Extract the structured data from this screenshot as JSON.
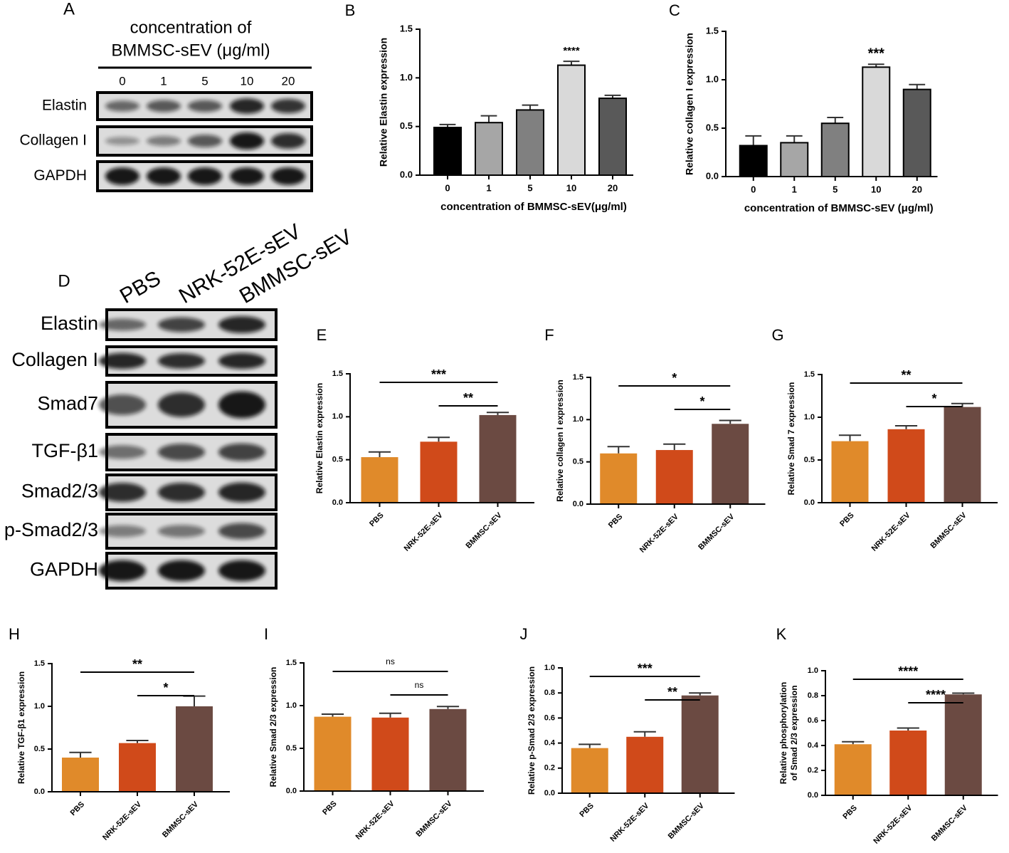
{
  "blot_a": {
    "panel": "A",
    "title": [
      "concentration of",
      "BMMSC-sEV (μg/ml)"
    ],
    "lanes": [
      "0",
      "1",
      "5",
      "10",
      "20"
    ],
    "rows": [
      "Elastin",
      "Collagen I",
      "GAPDH"
    ]
  },
  "blot_d": {
    "panel": "D",
    "lanes": [
      "PBS",
      "NRK-52E-sEV",
      "BMMSC-sEV"
    ],
    "rows": [
      "Elastin",
      "Collagen I",
      "Smad7",
      "TGF-β1",
      "Smad2/3",
      "p-Smad2/3",
      "GAPDH"
    ]
  },
  "chart_data": [
    {
      "type": "bar",
      "panel": "B",
      "ylabel": "Relative Elastin expression",
      "xlabel": "concentration of BMMSC-sEV(μg/ml)",
      "categories": [
        "0",
        "1",
        "5",
        "10",
        "20"
      ],
      "values": [
        0.49,
        0.54,
        0.67,
        1.13,
        0.79
      ],
      "errors": [
        0.03,
        0.07,
        0.05,
        0.04,
        0.03
      ],
      "colors": [
        "#000000",
        "#a6a6a6",
        "#808080",
        "#d9d9d9",
        "#595959"
      ],
      "ylim": [
        0,
        1.5
      ],
      "yticks": [
        {
          "value": 0,
          "label": "0.0"
        },
        {
          "value": 0.5,
          "label": "0.5"
        },
        {
          "value": 1,
          "label": "1.0"
        },
        {
          "value": 1.5,
          "label": "1.5"
        }
      ],
      "annotations": [
        {
          "bar": 3,
          "label": "****"
        }
      ]
    },
    {
      "type": "bar",
      "panel": "C",
      "ylabel": "Relative collagen I expression",
      "xlabel": "concentration of BMMSC-sEV (μg/ml)",
      "categories": [
        "0",
        "1",
        "5",
        "10",
        "20"
      ],
      "values": [
        0.32,
        0.35,
        0.55,
        1.13,
        0.9
      ],
      "errors": [
        0.1,
        0.07,
        0.06,
        0.03,
        0.05
      ],
      "colors": [
        "#000000",
        "#a6a6a6",
        "#808080",
        "#d9d9d9",
        "#595959"
      ],
      "ylim": [
        0,
        1.5
      ],
      "yticks": [
        {
          "value": 0,
          "label": "0.0"
        },
        {
          "value": 0.5,
          "label": "0.5"
        },
        {
          "value": 1,
          "label": "1.0"
        },
        {
          "value": 1.5,
          "label": "1.5"
        }
      ],
      "annotations": [
        {
          "bar": 3,
          "label": "***"
        }
      ]
    },
    {
      "type": "bar",
      "panel": "E",
      "ylabel": "Relative Elastin expression",
      "categories": [
        "PBS",
        "NRK-52E-sEV",
        "BMMSC-sEV"
      ],
      "values": [
        0.53,
        0.71,
        1.02
      ],
      "errors": [
        0.06,
        0.05,
        0.03
      ],
      "colors": [
        "#e08a2a",
        "#d04a1a",
        "#6b4a42"
      ],
      "ylim": [
        0,
        1.5
      ],
      "yticks": [
        {
          "value": 0,
          "label": "0.0"
        },
        {
          "value": 0.5,
          "label": "0.5"
        },
        {
          "value": 1,
          "label": "1.0"
        },
        {
          "value": 1.5,
          "label": "1.5"
        }
      ],
      "comparisons": [
        {
          "from": 0,
          "to": 2,
          "label": "***"
        },
        {
          "from": 1,
          "to": 2,
          "label": "**"
        }
      ]
    },
    {
      "type": "bar",
      "panel": "F",
      "ylabel": "Relative collagen I expression",
      "categories": [
        "PBS",
        "NRK-52E-sEV",
        "BMMSC-sEV"
      ],
      "values": [
        0.6,
        0.64,
        0.95
      ],
      "errors": [
        0.08,
        0.07,
        0.04
      ],
      "colors": [
        "#e08a2a",
        "#d04a1a",
        "#6b4a42"
      ],
      "ylim": [
        0,
        1.5
      ],
      "yticks": [
        {
          "value": 0,
          "label": "0.0"
        },
        {
          "value": 0.5,
          "label": "0.5"
        },
        {
          "value": 1,
          "label": "1.0"
        },
        {
          "value": 1.5,
          "label": "1.5"
        }
      ],
      "comparisons": [
        {
          "from": 0,
          "to": 2,
          "label": "*"
        },
        {
          "from": 1,
          "to": 2,
          "label": "*"
        }
      ]
    },
    {
      "type": "bar",
      "panel": "G",
      "ylabel": "Relative Smad 7 expression",
      "categories": [
        "PBS",
        "NRK-52E-sEV",
        "BMMSC-sEV"
      ],
      "values": [
        0.72,
        0.86,
        1.12
      ],
      "errors": [
        0.07,
        0.04,
        0.04
      ],
      "colors": [
        "#e08a2a",
        "#d04a1a",
        "#6b4a42"
      ],
      "ylim": [
        0,
        1.5
      ],
      "yticks": [
        {
          "value": 0,
          "label": "0.0"
        },
        {
          "value": 0.5,
          "label": "0.5"
        },
        {
          "value": 1,
          "label": "1.0"
        },
        {
          "value": 1.5,
          "label": "1.5"
        }
      ],
      "comparisons": [
        {
          "from": 0,
          "to": 2,
          "label": "**"
        },
        {
          "from": 1,
          "to": 2,
          "label": "*"
        }
      ]
    },
    {
      "type": "bar",
      "panel": "H",
      "ylabel": "Relative TGF-β1 expression",
      "categories": [
        "PBS",
        "NRK-52E-sEV",
        "BMMSC-sEV"
      ],
      "values": [
        0.4,
        0.57,
        1.0
      ],
      "errors": [
        0.06,
        0.03,
        0.12
      ],
      "colors": [
        "#e08a2a",
        "#d04a1a",
        "#6b4a42"
      ],
      "ylim": [
        0,
        1.5
      ],
      "yticks": [
        {
          "value": 0,
          "label": "0.0"
        },
        {
          "value": 0.5,
          "label": "0.5"
        },
        {
          "value": 1,
          "label": "1.0"
        },
        {
          "value": 1.5,
          "label": "1.5"
        }
      ],
      "comparisons": [
        {
          "from": 0,
          "to": 2,
          "label": "**"
        },
        {
          "from": 1,
          "to": 2,
          "label": "*"
        }
      ]
    },
    {
      "type": "bar",
      "panel": "I",
      "ylabel": "Relative Smad 2/3 expression",
      "categories": [
        "PBS",
        "NRK-52E-sEV",
        "BMMSC-sEV"
      ],
      "values": [
        0.87,
        0.86,
        0.96
      ],
      "errors": [
        0.03,
        0.05,
        0.03
      ],
      "colors": [
        "#e08a2a",
        "#d04a1a",
        "#6b4a42"
      ],
      "ylim": [
        0,
        1.5
      ],
      "yticks": [
        {
          "value": 0,
          "label": "0.0"
        },
        {
          "value": 0.5,
          "label": "0.5"
        },
        {
          "value": 1,
          "label": "1.0"
        },
        {
          "value": 1.5,
          "label": "1.5"
        }
      ],
      "comparisons": [
        {
          "from": 0,
          "to": 2,
          "label": "ns"
        },
        {
          "from": 1,
          "to": 2,
          "label": "ns"
        }
      ]
    },
    {
      "type": "bar",
      "panel": "J",
      "ylabel": "Relative p-Smad 2/3 expression",
      "categories": [
        "PBS",
        "NRK-52E-sEV",
        "BMMSC-sEV"
      ],
      "values": [
        0.36,
        0.45,
        0.78
      ],
      "errors": [
        0.03,
        0.04,
        0.02
      ],
      "colors": [
        "#e08a2a",
        "#d04a1a",
        "#6b4a42"
      ],
      "ylim": [
        0,
        1
      ],
      "yticks": [
        {
          "value": 0,
          "label": "0.0"
        },
        {
          "value": 0.2,
          "label": "0.2"
        },
        {
          "value": 0.4,
          "label": "0.4"
        },
        {
          "value": 0.6,
          "label": "0.6"
        },
        {
          "value": 0.8,
          "label": "0.8"
        },
        {
          "value": 1,
          "label": "1.0"
        }
      ],
      "comparisons": [
        {
          "from": 0,
          "to": 2,
          "label": "***"
        },
        {
          "from": 1,
          "to": 2,
          "label": "**"
        }
      ]
    },
    {
      "type": "bar",
      "panel": "K",
      "ylabel": [
        "Relative phosphorylation",
        "of Smad 2/3 expression"
      ],
      "categories": [
        "PBS",
        "NRK-52E-sEV",
        "BMMSC-sEV"
      ],
      "values": [
        0.41,
        0.52,
        0.81
      ],
      "errors": [
        0.02,
        0.02,
        0.01
      ],
      "colors": [
        "#e08a2a",
        "#d04a1a",
        "#6b4a42"
      ],
      "ylim": [
        0,
        1
      ],
      "yticks": [
        {
          "value": 0,
          "label": "0.0"
        },
        {
          "value": 0.2,
          "label": "0.2"
        },
        {
          "value": 0.4,
          "label": "0.4"
        },
        {
          "value": 0.6,
          "label": "0.6"
        },
        {
          "value": 0.8,
          "label": "0.8"
        },
        {
          "value": 1,
          "label": "1.0"
        }
      ],
      "comparisons": [
        {
          "from": 0,
          "to": 2,
          "label": "****"
        },
        {
          "from": 1,
          "to": 2,
          "label": "****"
        }
      ]
    }
  ]
}
